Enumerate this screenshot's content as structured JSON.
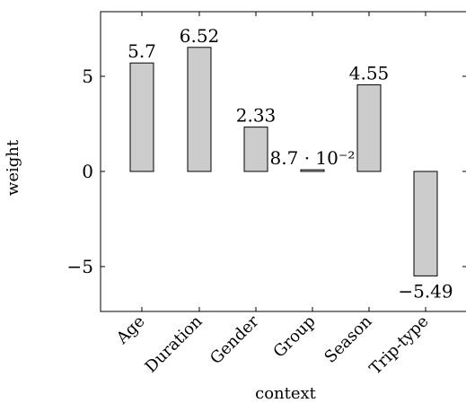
{
  "chart_data": {
    "type": "bar",
    "xlabel": "context",
    "ylabel": "weight",
    "categories": [
      "Age",
      "Duration",
      "Gender",
      "Group",
      "Season",
      "Trip-type"
    ],
    "values": [
      5.7,
      6.52,
      2.33,
      0.087,
      4.55,
      -5.49
    ],
    "value_labels": [
      "5.7",
      "6.52",
      "2.33",
      "8.7 · 10⁻²",
      "4.55",
      "−5.49"
    ],
    "yticks": [
      -5,
      0,
      5
    ],
    "ytick_labels": [
      "−5",
      "0",
      "5"
    ],
    "ylim": [
      -7.25,
      8.3
    ],
    "grid": false,
    "bar_color": "#cccccc",
    "bar_stroke": "#000000"
  }
}
